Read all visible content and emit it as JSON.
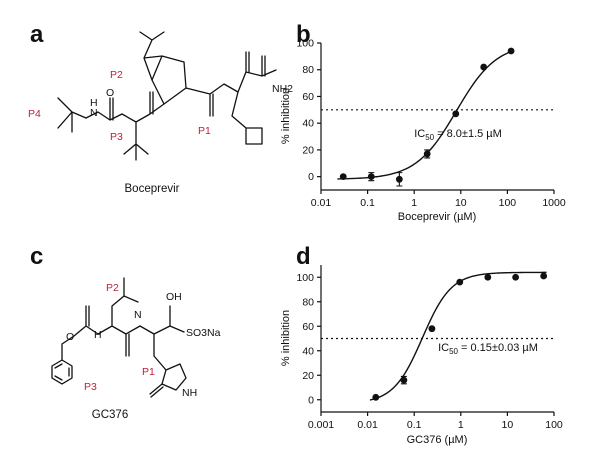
{
  "panels": {
    "a": {
      "letter": "a",
      "compound_name": "Boceprevir",
      "pocket_labels": [
        "P4",
        "P3",
        "P2",
        "P1"
      ],
      "atom_labels": [
        "H",
        "N",
        "O",
        "NH2"
      ]
    },
    "b": {
      "letter": "b"
    },
    "c": {
      "letter": "c",
      "compound_name": "GC376",
      "pocket_labels": [
        "P3",
        "P2",
        "P1"
      ],
      "atom_labels": [
        "O",
        "H",
        "N",
        "OH",
        "SO3Na",
        "NH"
      ]
    },
    "d": {
      "letter": "d"
    }
  },
  "chart_data": [
    {
      "panel": "b",
      "type": "scatter",
      "xlabel": "Boceprevir (µM)",
      "ylabel": "% inhibition",
      "xscale": "log",
      "xlim": [
        0.01,
        1000
      ],
      "ylim": [
        -10,
        100
      ],
      "xticks": [
        "0.01",
        "0.1",
        "1",
        "10",
        "100",
        "1000"
      ],
      "yticks": [
        "0",
        "20",
        "40",
        "60",
        "80",
        "100"
      ],
      "annotation": "IC50 = 8.0±1.5 µM",
      "annotation_parts": {
        "pre": "IC",
        "sub": "50",
        "post": " = 8.0±1.5 µM"
      },
      "threshold": 50,
      "fit": {
        "ic50": 8.0,
        "bottom": -2,
        "top": 100,
        "hill": 1.0
      },
      "x": [
        0.03,
        0.12,
        0.48,
        1.9,
        7.8,
        31,
        120
      ],
      "y": [
        0,
        0,
        -2,
        17,
        47,
        82,
        94
      ],
      "err": [
        0,
        3,
        5,
        3,
        0,
        0,
        0
      ]
    },
    {
      "panel": "d",
      "type": "scatter",
      "xlabel": "GC376 (µM)",
      "ylabel": "% inhibition",
      "xscale": "log",
      "xlim": [
        0.001,
        100
      ],
      "ylim": [
        -10,
        110
      ],
      "xticks": [
        "0.001",
        "0.01",
        "0.1",
        "1",
        "10",
        "100"
      ],
      "yticks": [
        "0",
        "20",
        "40",
        "60",
        "80",
        "100"
      ],
      "annotation": "IC50 = 0.15±0.03 µM",
      "annotation_parts": {
        "pre": "IC",
        "sub": "50",
        "post": " = 0.15±0.03 µM"
      },
      "threshold": 50,
      "fit": {
        "ic50": 0.15,
        "bottom": -3,
        "top": 104,
        "hill": 1.4
      },
      "x": [
        0.015,
        0.06,
        0.24,
        0.95,
        3.8,
        15,
        60
      ],
      "y": [
        2,
        16,
        58,
        96,
        100,
        100,
        101
      ],
      "err": [
        0,
        3,
        0,
        0,
        0,
        0,
        0
      ]
    }
  ]
}
